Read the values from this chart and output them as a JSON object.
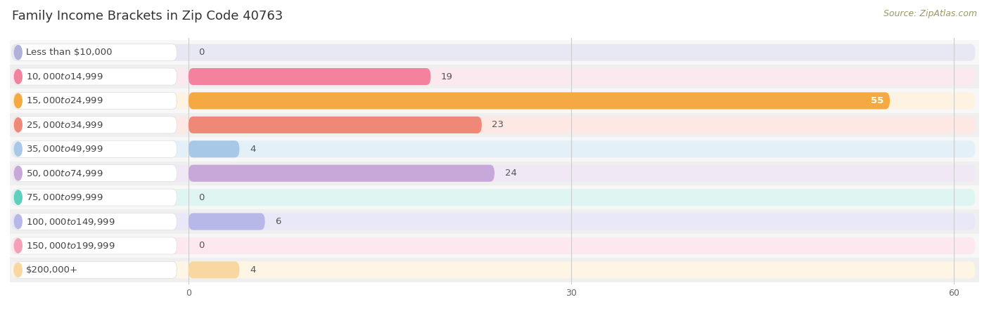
{
  "title": "Family Income Brackets in Zip Code 40763",
  "source": "Source: ZipAtlas.com",
  "categories": [
    "Less than $10,000",
    "$10,000 to $14,999",
    "$15,000 to $24,999",
    "$25,000 to $34,999",
    "$35,000 to $49,999",
    "$50,000 to $74,999",
    "$75,000 to $99,999",
    "$100,000 to $149,999",
    "$150,000 to $199,999",
    "$200,000+"
  ],
  "values": [
    0,
    19,
    55,
    23,
    4,
    24,
    0,
    6,
    0,
    4
  ],
  "bar_colors": [
    "#b0b0d8",
    "#f4829e",
    "#f5a942",
    "#f08878",
    "#a8c8e8",
    "#c8a8d8",
    "#5ecfbe",
    "#b8b8e8",
    "#f4a0b8",
    "#f8d8a0"
  ],
  "bar_bg_colors": [
    "#e8e8f4",
    "#fce8ef",
    "#fef3e2",
    "#fde8e4",
    "#e4f0f8",
    "#f0e8f4",
    "#dff5f2",
    "#e8e8f8",
    "#fde8ef",
    "#fef5e4"
  ],
  "row_alt_colors": [
    "#f7f7f7",
    "#efefef"
  ],
  "xlim_max": 60,
  "xticks": [
    0,
    30,
    60
  ],
  "bar_height": 0.7,
  "title_fontsize": 13,
  "label_fontsize": 9.5,
  "value_fontsize": 9.5,
  "source_fontsize": 9,
  "background_color": "#ffffff",
  "grid_color": "#cccccc",
  "label_box_color": "#ffffff",
  "label_color": "#444444",
  "value_color_outside": "#555555",
  "value_color_inside": "#ffffff"
}
